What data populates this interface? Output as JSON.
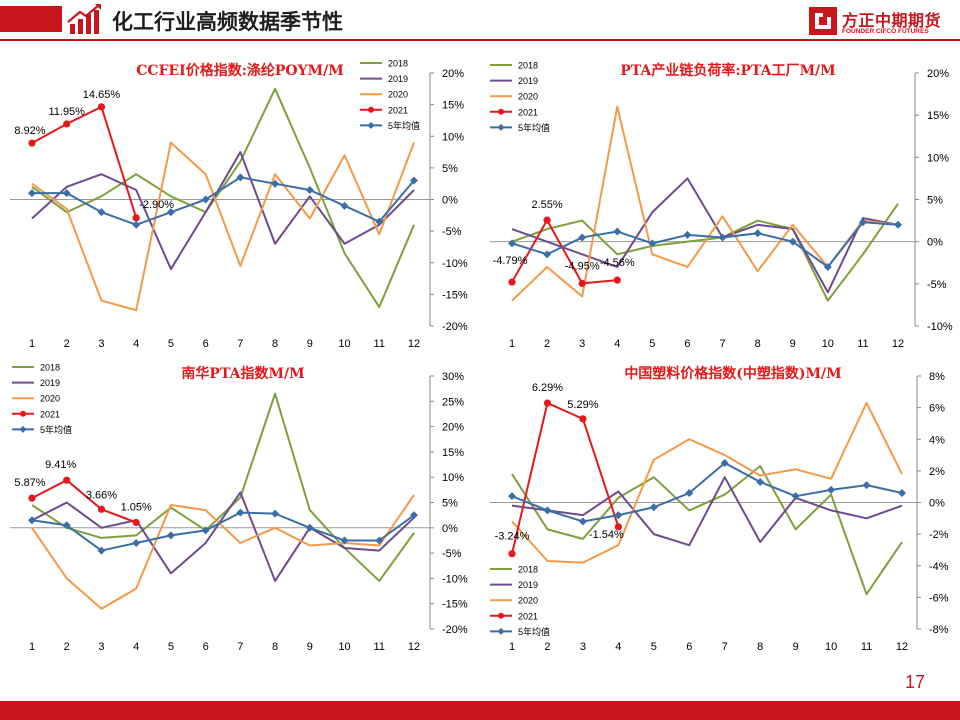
{
  "page": {
    "title": "化工行业高频数据季节性",
    "page_number": "17",
    "logo_text": "方正中期期货",
    "logo_sub": "FOUNDER CIFCO FUTURES"
  },
  "colors": {
    "brand": "#c8161d",
    "series_2018": "#7f9f3c",
    "series_2019": "#6e4a8e",
    "series_2020": "#f29a48",
    "series_2021": "#e3191b",
    "series_5yr": "#3a6fa6"
  },
  "chart_data": [
    {
      "type": "line",
      "title": "CCFEI价格指数:涤纶POYM/M",
      "x": [
        "1",
        "2",
        "3",
        "4",
        "5",
        "6",
        "7",
        "8",
        "9",
        "10",
        "11",
        "12"
      ],
      "ylim": [
        -20,
        20
      ],
      "yticks": [
        "20%",
        "15%",
        "10%",
        "5%",
        "0%",
        "-5%",
        "-10%",
        "-15%",
        "-20%"
      ],
      "legend_position": "top-right",
      "series": [
        {
          "name": "2018",
          "values": [
            2,
            -2,
            0.5,
            4,
            0.5,
            -2,
            6,
            17.5,
            5,
            -8.5,
            -17,
            -4
          ]
        },
        {
          "name": "2019",
          "values": [
            -3,
            2,
            4,
            1.5,
            -11,
            -2,
            7.5,
            -7,
            0.5,
            -7,
            -4,
            1.5
          ]
        },
        {
          "name": "2020",
          "values": [
            2.5,
            -1.5,
            -16,
            -17.5,
            9,
            4,
            -10.5,
            4,
            -3,
            7,
            -5.5,
            9
          ]
        },
        {
          "name": "2021",
          "values": [
            8.92,
            11.95,
            14.65,
            -2.9
          ]
        },
        {
          "name": "5年均值",
          "values": [
            1,
            1,
            -2,
            -4,
            -2,
            0,
            3.5,
            2.5,
            1.5,
            -1,
            -3.5,
            3
          ]
        }
      ],
      "labels": [
        "8.92%",
        "11.95%",
        "14.65%",
        "-2.90%"
      ]
    },
    {
      "type": "line",
      "title": "PTA产业链负荷率:PTA工厂M/M",
      "x": [
        "1",
        "2",
        "3",
        "4",
        "5",
        "6",
        "7",
        "8",
        "9",
        "10",
        "11",
        "12"
      ],
      "ylim": [
        -10,
        20
      ],
      "yticks": [
        "20%",
        "15%",
        "10%",
        "5%",
        "0%",
        "-5%",
        "-10%"
      ],
      "legend_position": "top-left",
      "series": [
        {
          "name": "2018",
          "values": [
            0,
            1.5,
            2.5,
            -1.5,
            -0.5,
            0,
            0.5,
            2.5,
            1.5,
            -7,
            -1.5,
            4.5
          ]
        },
        {
          "name": "2019",
          "values": [
            1.5,
            0,
            -1.5,
            -3,
            3.5,
            7.5,
            0.5,
            2,
            1.5,
            -6,
            2.8,
            2
          ]
        },
        {
          "name": "2020",
          "values": [
            -7,
            -3,
            -6.5,
            16,
            -1.5,
            -3,
            3,
            -3.5,
            2,
            -3,
            2.5,
            2
          ]
        },
        {
          "name": "2021",
          "values": [
            -4.79,
            2.55,
            -4.95,
            -4.56
          ]
        },
        {
          "name": "5年均值",
          "values": [
            -0.2,
            -1.5,
            0.5,
            1.2,
            -0.2,
            0.8,
            0.5,
            1,
            0,
            -3,
            2.3,
            2
          ]
        }
      ],
      "labels": [
        "-4.79%",
        "2.55%",
        "-4.95%",
        "-4.56%"
      ]
    },
    {
      "type": "line",
      "title": "南华PTA指数M/M",
      "x": [
        "1",
        "2",
        "3",
        "4",
        "5",
        "6",
        "7",
        "8",
        "9",
        "10",
        "11",
        "12"
      ],
      "ylim": [
        -20,
        30
      ],
      "yticks": [
        "30%",
        "25%",
        "20%",
        "15%",
        "10%",
        "5%",
        "0%",
        "-5%",
        "-10%",
        "-15%",
        "-20%"
      ],
      "legend_position": "top-left",
      "series": [
        {
          "name": "2018",
          "values": [
            4.5,
            0,
            -2,
            -1.5,
            4,
            -0.5,
            6,
            26.5,
            3.5,
            -4,
            -10.5,
            -1
          ]
        },
        {
          "name": "2019",
          "values": [
            1.5,
            5,
            0,
            1.5,
            -9,
            -3,
            7,
            -10.5,
            0,
            -4,
            -4.5,
            2
          ]
        },
        {
          "name": "2020",
          "values": [
            0,
            -10,
            -16,
            -12,
            4.5,
            3.5,
            -3,
            0,
            -3.5,
            -3,
            -3.5,
            6.5
          ]
        },
        {
          "name": "2021",
          "values": [
            5.87,
            9.41,
            3.66,
            1.05
          ]
        },
        {
          "name": "5年均值",
          "values": [
            1.5,
            0.5,
            -4.5,
            -3,
            -1.5,
            -0.5,
            3,
            2.8,
            0,
            -2.5,
            -2.5,
            2.5
          ]
        }
      ],
      "labels": [
        "5.87%",
        "9.41%",
        "3.66%",
        "1.05%"
      ]
    },
    {
      "type": "line",
      "title": "中国塑料价格指数(中塑指数)M/M",
      "x": [
        "1",
        "2",
        "3",
        "4",
        "5",
        "6",
        "7",
        "8",
        "9",
        "10",
        "11",
        "12"
      ],
      "ylim": [
        -8,
        8
      ],
      "yticks": [
        "8%",
        "6%",
        "4%",
        "2%",
        "0%",
        "-2%",
        "-4%",
        "-6%",
        "-8%"
      ],
      "legend_position": "bottom-left",
      "series": [
        {
          "name": "2018",
          "values": [
            1.8,
            -1.7,
            -2.3,
            0.3,
            1.6,
            -0.5,
            0.5,
            2.3,
            -1.7,
            0.5,
            -5.8,
            -2.5
          ]
        },
        {
          "name": "2019",
          "values": [
            -0.2,
            -0.5,
            -0.8,
            0.7,
            -2,
            -2.7,
            1.6,
            -2.5,
            0.3,
            -0.5,
            -1,
            -0.2
          ]
        },
        {
          "name": "2020",
          "values": [
            -1.2,
            -3.7,
            -3.8,
            -2.7,
            2.7,
            4,
            3,
            1.7,
            2.1,
            1.5,
            6.3,
            1.8
          ]
        },
        {
          "name": "2021",
          "values": [
            -3.24,
            6.29,
            5.29,
            -1.54
          ]
        },
        {
          "name": "5年均值",
          "values": [
            0.4,
            -0.5,
            -1.2,
            -0.8,
            -0.3,
            0.6,
            2.5,
            1.3,
            0.4,
            0.8,
            1.1,
            0.6
          ]
        }
      ],
      "labels": [
        "-3.24%",
        "6.29%",
        "5.29%",
        "-1.54%"
      ]
    }
  ]
}
